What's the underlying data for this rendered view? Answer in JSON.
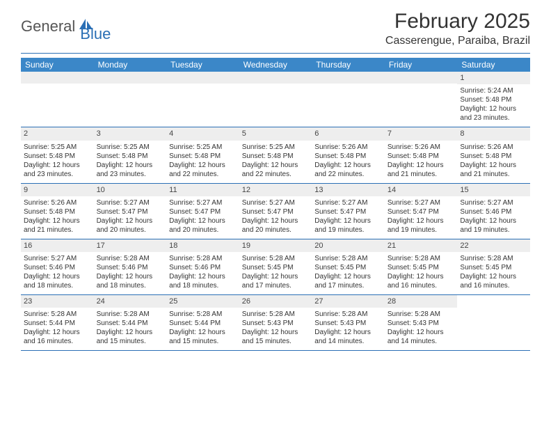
{
  "logo": {
    "text_gray": "General",
    "text_blue": "Blue",
    "icon_color": "#2a6fb5"
  },
  "title": "February 2025",
  "location": "Casserengue, Paraiba, Brazil",
  "colors": {
    "header_bg": "#3b87c8",
    "divider": "#2a6fb5",
    "daynum_bg": "#eeeeee",
    "text": "#333333"
  },
  "weekdays": [
    "Sunday",
    "Monday",
    "Tuesday",
    "Wednesday",
    "Thursday",
    "Friday",
    "Saturday"
  ],
  "weeks": [
    [
      {
        "empty": true
      },
      {
        "empty": true
      },
      {
        "empty": true
      },
      {
        "empty": true
      },
      {
        "empty": true
      },
      {
        "empty": true
      },
      {
        "day": "1",
        "sunrise": "Sunrise: 5:24 AM",
        "sunset": "Sunset: 5:48 PM",
        "daylight": "Daylight: 12 hours and 23 minutes."
      }
    ],
    [
      {
        "day": "2",
        "sunrise": "Sunrise: 5:25 AM",
        "sunset": "Sunset: 5:48 PM",
        "daylight": "Daylight: 12 hours and 23 minutes."
      },
      {
        "day": "3",
        "sunrise": "Sunrise: 5:25 AM",
        "sunset": "Sunset: 5:48 PM",
        "daylight": "Daylight: 12 hours and 23 minutes."
      },
      {
        "day": "4",
        "sunrise": "Sunrise: 5:25 AM",
        "sunset": "Sunset: 5:48 PM",
        "daylight": "Daylight: 12 hours and 22 minutes."
      },
      {
        "day": "5",
        "sunrise": "Sunrise: 5:25 AM",
        "sunset": "Sunset: 5:48 PM",
        "daylight": "Daylight: 12 hours and 22 minutes."
      },
      {
        "day": "6",
        "sunrise": "Sunrise: 5:26 AM",
        "sunset": "Sunset: 5:48 PM",
        "daylight": "Daylight: 12 hours and 22 minutes."
      },
      {
        "day": "7",
        "sunrise": "Sunrise: 5:26 AM",
        "sunset": "Sunset: 5:48 PM",
        "daylight": "Daylight: 12 hours and 21 minutes."
      },
      {
        "day": "8",
        "sunrise": "Sunrise: 5:26 AM",
        "sunset": "Sunset: 5:48 PM",
        "daylight": "Daylight: 12 hours and 21 minutes."
      }
    ],
    [
      {
        "day": "9",
        "sunrise": "Sunrise: 5:26 AM",
        "sunset": "Sunset: 5:48 PM",
        "daylight": "Daylight: 12 hours and 21 minutes."
      },
      {
        "day": "10",
        "sunrise": "Sunrise: 5:27 AM",
        "sunset": "Sunset: 5:47 PM",
        "daylight": "Daylight: 12 hours and 20 minutes."
      },
      {
        "day": "11",
        "sunrise": "Sunrise: 5:27 AM",
        "sunset": "Sunset: 5:47 PM",
        "daylight": "Daylight: 12 hours and 20 minutes."
      },
      {
        "day": "12",
        "sunrise": "Sunrise: 5:27 AM",
        "sunset": "Sunset: 5:47 PM",
        "daylight": "Daylight: 12 hours and 20 minutes."
      },
      {
        "day": "13",
        "sunrise": "Sunrise: 5:27 AM",
        "sunset": "Sunset: 5:47 PM",
        "daylight": "Daylight: 12 hours and 19 minutes."
      },
      {
        "day": "14",
        "sunrise": "Sunrise: 5:27 AM",
        "sunset": "Sunset: 5:47 PM",
        "daylight": "Daylight: 12 hours and 19 minutes."
      },
      {
        "day": "15",
        "sunrise": "Sunrise: 5:27 AM",
        "sunset": "Sunset: 5:46 PM",
        "daylight": "Daylight: 12 hours and 19 minutes."
      }
    ],
    [
      {
        "day": "16",
        "sunrise": "Sunrise: 5:27 AM",
        "sunset": "Sunset: 5:46 PM",
        "daylight": "Daylight: 12 hours and 18 minutes."
      },
      {
        "day": "17",
        "sunrise": "Sunrise: 5:28 AM",
        "sunset": "Sunset: 5:46 PM",
        "daylight": "Daylight: 12 hours and 18 minutes."
      },
      {
        "day": "18",
        "sunrise": "Sunrise: 5:28 AM",
        "sunset": "Sunset: 5:46 PM",
        "daylight": "Daylight: 12 hours and 18 minutes."
      },
      {
        "day": "19",
        "sunrise": "Sunrise: 5:28 AM",
        "sunset": "Sunset: 5:45 PM",
        "daylight": "Daylight: 12 hours and 17 minutes."
      },
      {
        "day": "20",
        "sunrise": "Sunrise: 5:28 AM",
        "sunset": "Sunset: 5:45 PM",
        "daylight": "Daylight: 12 hours and 17 minutes."
      },
      {
        "day": "21",
        "sunrise": "Sunrise: 5:28 AM",
        "sunset": "Sunset: 5:45 PM",
        "daylight": "Daylight: 12 hours and 16 minutes."
      },
      {
        "day": "22",
        "sunrise": "Sunrise: 5:28 AM",
        "sunset": "Sunset: 5:45 PM",
        "daylight": "Daylight: 12 hours and 16 minutes."
      }
    ],
    [
      {
        "day": "23",
        "sunrise": "Sunrise: 5:28 AM",
        "sunset": "Sunset: 5:44 PM",
        "daylight": "Daylight: 12 hours and 16 minutes."
      },
      {
        "day": "24",
        "sunrise": "Sunrise: 5:28 AM",
        "sunset": "Sunset: 5:44 PM",
        "daylight": "Daylight: 12 hours and 15 minutes."
      },
      {
        "day": "25",
        "sunrise": "Sunrise: 5:28 AM",
        "sunset": "Sunset: 5:44 PM",
        "daylight": "Daylight: 12 hours and 15 minutes."
      },
      {
        "day": "26",
        "sunrise": "Sunrise: 5:28 AM",
        "sunset": "Sunset: 5:43 PM",
        "daylight": "Daylight: 12 hours and 15 minutes."
      },
      {
        "day": "27",
        "sunrise": "Sunrise: 5:28 AM",
        "sunset": "Sunset: 5:43 PM",
        "daylight": "Daylight: 12 hours and 14 minutes."
      },
      {
        "day": "28",
        "sunrise": "Sunrise: 5:28 AM",
        "sunset": "Sunset: 5:43 PM",
        "daylight": "Daylight: 12 hours and 14 minutes."
      },
      {
        "empty": true,
        "noBar": true
      }
    ]
  ]
}
